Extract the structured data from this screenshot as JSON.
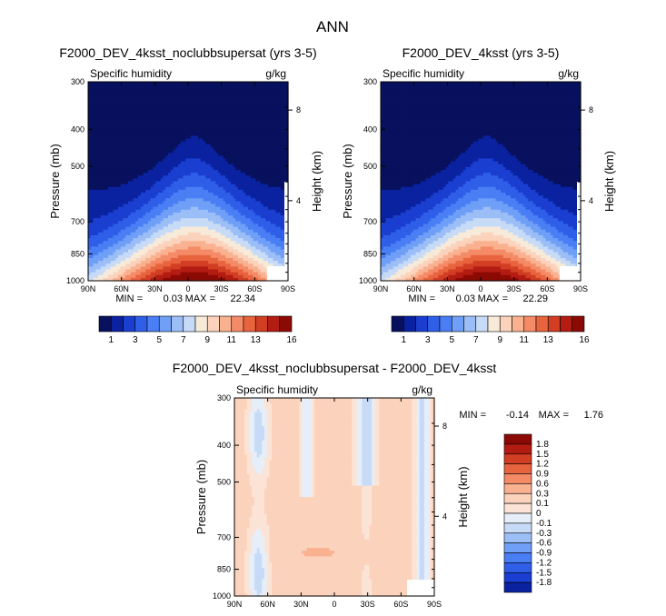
{
  "chart_data": [
    {
      "type": "contour",
      "main_title": "ANN",
      "title": "F2000_DEV_4ksst_noclubbsupersat (yrs 3-5)",
      "left_label": "Specific humidity",
      "right_label": "g/kg",
      "ylabel": "Pressure (mb)",
      "y2label": "Height (km)",
      "x_ticks": [
        "90N",
        "60N",
        "30N",
        "0",
        "30S",
        "60S",
        "90S"
      ],
      "y_ticks": [
        "300",
        "400",
        "500",
        "700",
        "850",
        "1000"
      ],
      "y_tick_values": [
        300,
        400,
        500,
        700,
        850,
        1000
      ],
      "y2_ticks": [
        "8",
        "4"
      ],
      "stats": {
        "min_label": "MIN =",
        "min": "0.03",
        "max_label": "MAX =",
        "max": "22.34"
      },
      "colorbar": {
        "labels": [
          "1",
          "3",
          "5",
          "7",
          "9",
          "11",
          "13",
          "16"
        ],
        "colors": [
          "#08115e",
          "#0a22a0",
          "#1a3fd0",
          "#2f5fe8",
          "#4a7ef5",
          "#6f9ff7",
          "#9cbef7",
          "#c7dbf7",
          "#f7ead9",
          "#fbd2bb",
          "#f9b190",
          "#f48a66",
          "#e8643f",
          "#d23e24",
          "#b31c12",
          "#8c0a05"
        ]
      }
    },
    {
      "type": "contour",
      "title": "F2000_DEV_4ksst (yrs 3-5)",
      "left_label": "Specific humidity",
      "right_label": "g/kg",
      "ylabel": "Pressure (mb)",
      "y2label": "Height (km)",
      "x_ticks": [
        "90N",
        "60N",
        "30N",
        "0",
        "30S",
        "60S",
        "90S"
      ],
      "y_ticks": [
        "300",
        "400",
        "500",
        "700",
        "850",
        "1000"
      ],
      "y_tick_values": [
        300,
        400,
        500,
        700,
        850,
        1000
      ],
      "y2_ticks": [
        "8",
        "4"
      ],
      "stats": {
        "min_label": "MIN =",
        "min": "0.03",
        "max_label": "MAX =",
        "max": "22.29"
      },
      "colorbar": {
        "labels": [
          "1",
          "3",
          "5",
          "7",
          "9",
          "11",
          "13",
          "16"
        ],
        "colors": [
          "#08115e",
          "#0a22a0",
          "#1a3fd0",
          "#2f5fe8",
          "#4a7ef5",
          "#6f9ff7",
          "#9cbef7",
          "#c7dbf7",
          "#f7ead9",
          "#fbd2bb",
          "#f9b190",
          "#f48a66",
          "#e8643f",
          "#d23e24",
          "#b31c12",
          "#8c0a05"
        ]
      }
    },
    {
      "type": "contour",
      "title": "F2000_DEV_4ksst_noclubbsupersat - F2000_DEV_4ksst",
      "left_label": "Specific humidity",
      "right_label": "g/kg",
      "ylabel": "Pressure (mb)",
      "y2label": "Height (km)",
      "x_ticks": [
        "90N",
        "60N",
        "30N",
        "0",
        "30S",
        "60S",
        "90S"
      ],
      "y_ticks": [
        "300",
        "400",
        "500",
        "700",
        "850",
        "1000"
      ],
      "y_tick_values": [
        300,
        400,
        500,
        700,
        850,
        1000
      ],
      "y2_ticks": [
        "8",
        "4"
      ],
      "stats": {
        "min_label": "MIN =",
        "min": "-0.14",
        "max_label": "MAX =",
        "max": "1.76"
      },
      "colorbar": {
        "labels": [
          "1.8",
          "1.5",
          "1.2",
          "0.9",
          "0.6",
          "0.3",
          "0.1",
          "0",
          "-0.1",
          "-0.3",
          "-0.6",
          "-0.9",
          "-1.2",
          "-1.5",
          "-1.8"
        ],
        "colors": [
          "#8c0a05",
          "#b31c12",
          "#d23e24",
          "#e8643f",
          "#f48a66",
          "#f9b190",
          "#fbd2bb",
          "#fbe4d6",
          "#e6eef9",
          "#c7dbf7",
          "#9cbef7",
          "#6f9ff7",
          "#4a7ef5",
          "#2f5fe8",
          "#1a3fd0",
          "#0a22a0"
        ]
      }
    }
  ]
}
